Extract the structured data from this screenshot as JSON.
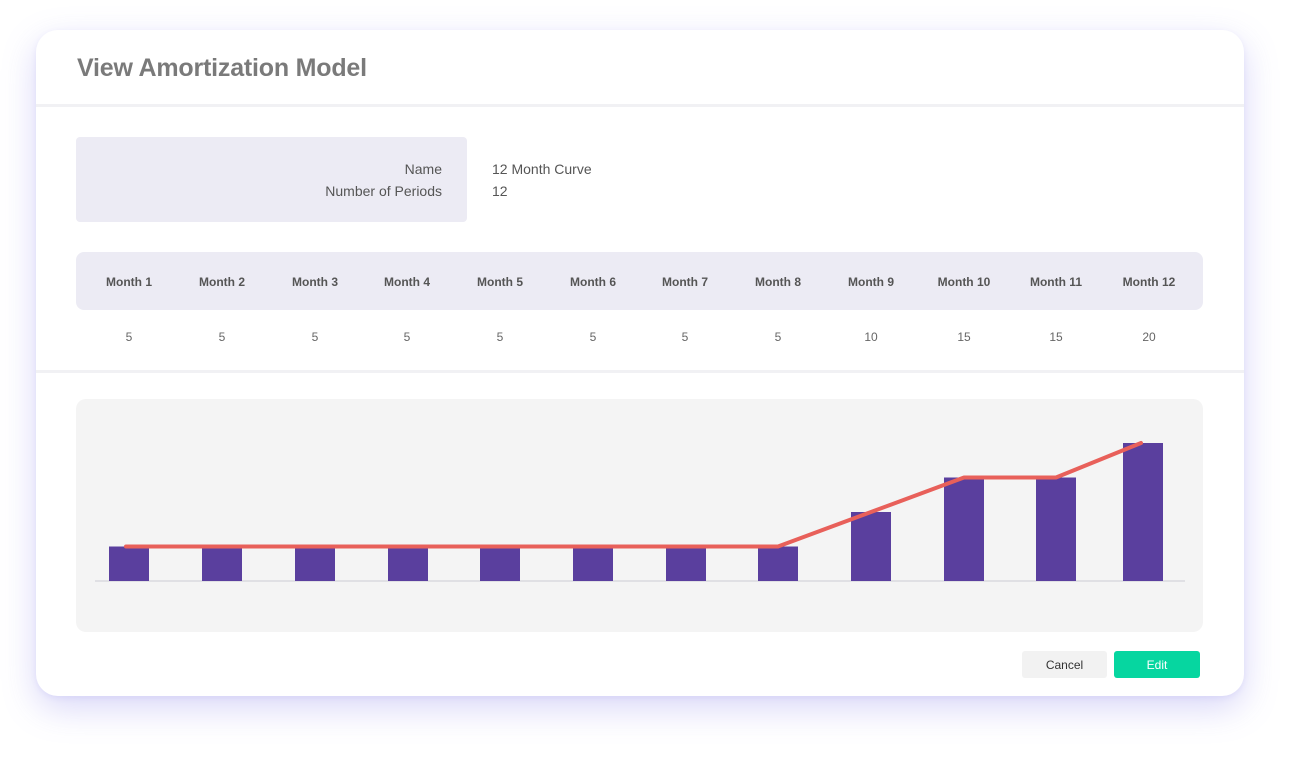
{
  "dialog": {
    "title": "View Amortization Model"
  },
  "info": {
    "name_label": "Name",
    "name_value": "12 Month Curve",
    "periods_label": "Number of Periods",
    "periods_value": "12"
  },
  "schedule": {
    "months": [
      "Month 1",
      "Month 2",
      "Month 3",
      "Month 4",
      "Month 5",
      "Month 6",
      "Month 7",
      "Month 8",
      "Month 9",
      "Month 10",
      "Month 11",
      "Month 12"
    ],
    "values": [
      "5",
      "5",
      "5",
      "5",
      "5",
      "5",
      "5",
      "5",
      "10",
      "15",
      "15",
      "20"
    ]
  },
  "chart_data": {
    "type": "bar",
    "categories": [
      "Month 1",
      "Month 2",
      "Month 3",
      "Month 4",
      "Month 5",
      "Month 6",
      "Month 7",
      "Month 8",
      "Month 9",
      "Month 10",
      "Month 11",
      "Month 12"
    ],
    "series": [
      {
        "values": [
          5,
          5,
          5,
          5,
          5,
          5,
          5,
          5,
          10,
          15,
          15,
          20
        ],
        "render": "bar",
        "color": "#5a3f9e"
      },
      {
        "values": [
          5,
          5,
          5,
          5,
          5,
          5,
          5,
          5,
          10,
          15,
          15,
          20
        ],
        "render": "line",
        "color": "#e8605a"
      }
    ],
    "ylim": [
      0,
      20
    ],
    "grid": false,
    "legend": "none",
    "title": "",
    "xlabel": "",
    "ylabel": ""
  },
  "actions": {
    "cancel_label": "Cancel",
    "edit_label": "Edit"
  },
  "colors": {
    "bar": "#5a3f9e",
    "line": "#e8605a",
    "accent": "#06d6a0",
    "panel": "#ecebf4"
  }
}
